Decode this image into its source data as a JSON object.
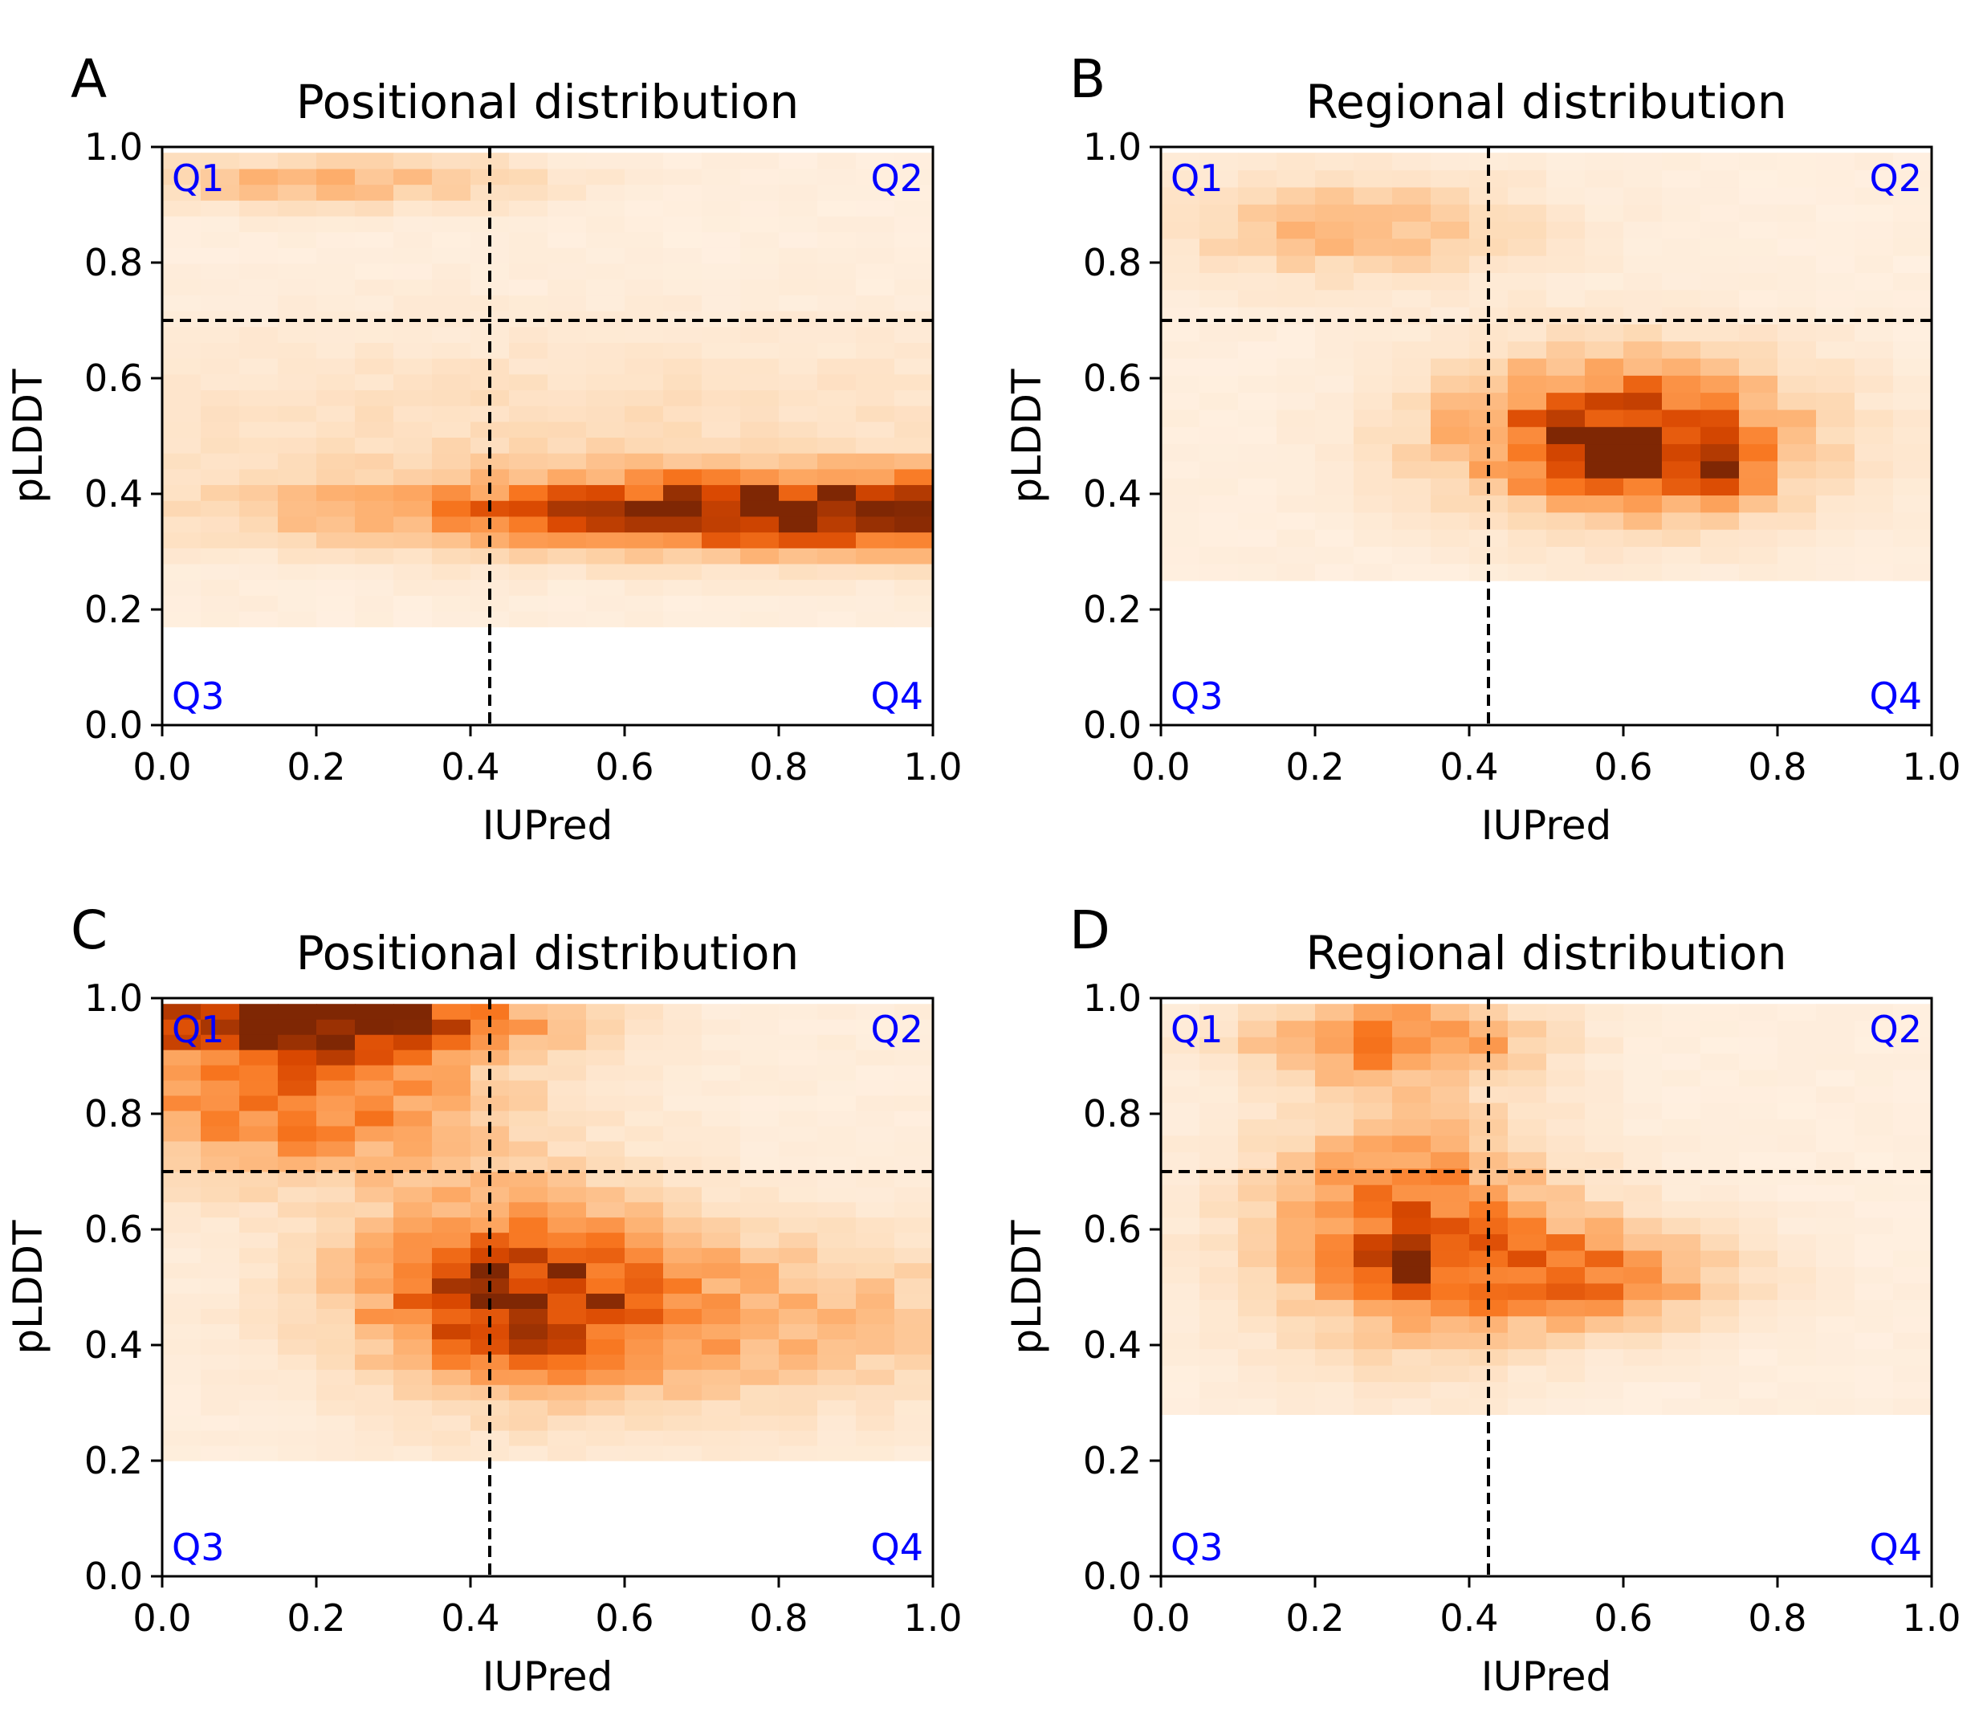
{
  "palette": {
    "colormap": [
      "#fff5eb",
      "#fdd9b4",
      "#fdaa66",
      "#f8761f",
      "#d94801",
      "#7f2704"
    ],
    "quadrant_label_color": "#0000ff",
    "threshold_line_color": "#000000"
  },
  "chart_data": [
    {
      "panel": "A",
      "type": "heatmap",
      "title": "Positional distribution",
      "xlabel": "IUPred",
      "ylabel": "pLDDT",
      "xlim": [
        0.0,
        1.0
      ],
      "ylim": [
        0.0,
        1.0
      ],
      "xticks": [
        "0.0",
        "0.2",
        "0.4",
        "0.6",
        "0.8",
        "1.0"
      ],
      "yticks": [
        "0.0",
        "0.2",
        "0.4",
        "0.6",
        "0.8",
        "1.0"
      ],
      "thresholds": {
        "x": 0.425,
        "y": 0.7
      },
      "quadrants": [
        "Q1",
        "Q2",
        "Q3",
        "Q4"
      ],
      "grid": {
        "x_bins": 20,
        "y_bins": 30,
        "ymin": 0.17,
        "ymax": 0.99,
        "hotspots": [
          {
            "x": 0.9,
            "y": 0.37,
            "sx": 0.4,
            "sy": 0.045,
            "a": 1.0
          },
          {
            "x": 0.22,
            "y": 0.94,
            "sx": 0.18,
            "sy": 0.03,
            "a": 0.32
          },
          {
            "x": 0.52,
            "y": 0.5,
            "sx": 0.5,
            "sy": 0.12,
            "a": 0.12
          }
        ],
        "base": 0.05,
        "seed": 11
      }
    },
    {
      "panel": "B",
      "type": "heatmap",
      "title": "Regional distribution",
      "xlabel": "IUPred",
      "ylabel": "pLDDT",
      "xlim": [
        0.0,
        1.0
      ],
      "ylim": [
        0.0,
        1.0
      ],
      "xticks": [
        "0.0",
        "0.2",
        "0.4",
        "0.6",
        "0.8",
        "1.0"
      ],
      "yticks": [
        "0.0",
        "0.2",
        "0.4",
        "0.6",
        "0.8",
        "1.0"
      ],
      "thresholds": {
        "x": 0.425,
        "y": 0.7
      },
      "quadrants": [
        "Q1",
        "Q2",
        "Q3",
        "Q4"
      ],
      "grid": {
        "x_bins": 20,
        "y_bins": 25,
        "ymin": 0.25,
        "ymax": 0.99,
        "hotspots": [
          {
            "x": 0.6,
            "y": 0.5,
            "sx": 0.15,
            "sy": 0.09,
            "a": 0.85
          },
          {
            "x": 0.25,
            "y": 0.86,
            "sx": 0.15,
            "sy": 0.06,
            "a": 0.3
          },
          {
            "x": 0.57,
            "y": 0.47,
            "sx": 0.04,
            "sy": 0.03,
            "a": 0.6
          },
          {
            "x": 0.72,
            "y": 0.44,
            "sx": 0.04,
            "sy": 0.03,
            "a": 0.6
          }
        ],
        "base": 0.05,
        "seed": 23
      }
    },
    {
      "panel": "C",
      "type": "heatmap",
      "title": "Positional distribution",
      "xlabel": "IUPred",
      "ylabel": "pLDDT",
      "xlim": [
        0.0,
        1.0
      ],
      "ylim": [
        0.0,
        1.0
      ],
      "xticks": [
        "0.0",
        "0.2",
        "0.4",
        "0.6",
        "0.8",
        "1.0"
      ],
      "yticks": [
        "0.0",
        "0.2",
        "0.4",
        "0.6",
        "0.8",
        "1.0"
      ],
      "thresholds": {
        "x": 0.425,
        "y": 0.7
      },
      "quadrants": [
        "Q1",
        "Q2",
        "Q3",
        "Q4"
      ],
      "grid": {
        "x_bins": 20,
        "y_bins": 30,
        "ymin": 0.2,
        "ymax": 0.99,
        "hotspots": [
          {
            "x": 0.2,
            "y": 0.96,
            "sx": 0.18,
            "sy": 0.04,
            "a": 1.0
          },
          {
            "x": 0.18,
            "y": 0.82,
            "sx": 0.18,
            "sy": 0.09,
            "a": 0.55
          },
          {
            "x": 0.45,
            "y": 0.5,
            "sx": 0.13,
            "sy": 0.11,
            "a": 0.7
          },
          {
            "x": 0.7,
            "y": 0.45,
            "sx": 0.25,
            "sy": 0.1,
            "a": 0.35
          }
        ],
        "base": 0.06,
        "seed": 37
      }
    },
    {
      "panel": "D",
      "type": "heatmap",
      "title": "Regional distribution",
      "xlabel": "IUPred",
      "ylabel": "pLDDT",
      "xlim": [
        0.0,
        1.0
      ],
      "ylim": [
        0.0,
        1.0
      ],
      "xticks": [
        "0.0",
        "0.2",
        "0.4",
        "0.6",
        "0.8",
        "1.0"
      ],
      "yticks": [
        "0.0",
        "0.2",
        "0.4",
        "0.6",
        "0.8",
        "1.0"
      ],
      "thresholds": {
        "x": 0.425,
        "y": 0.7
      },
      "quadrants": [
        "Q1",
        "Q2",
        "Q3",
        "Q4"
      ],
      "grid": {
        "x_bins": 20,
        "y_bins": 25,
        "ymin": 0.28,
        "ymax": 0.99,
        "hotspots": [
          {
            "x": 0.32,
            "y": 0.6,
            "sx": 0.13,
            "sy": 0.13,
            "a": 0.6
          },
          {
            "x": 0.3,
            "y": 0.93,
            "sx": 0.12,
            "sy": 0.05,
            "a": 0.55
          },
          {
            "x": 0.56,
            "y": 0.52,
            "sx": 0.12,
            "sy": 0.06,
            "a": 0.5
          },
          {
            "x": 0.32,
            "y": 0.55,
            "sx": 0.03,
            "sy": 0.03,
            "a": 0.7
          }
        ],
        "base": 0.05,
        "seed": 53
      }
    }
  ]
}
